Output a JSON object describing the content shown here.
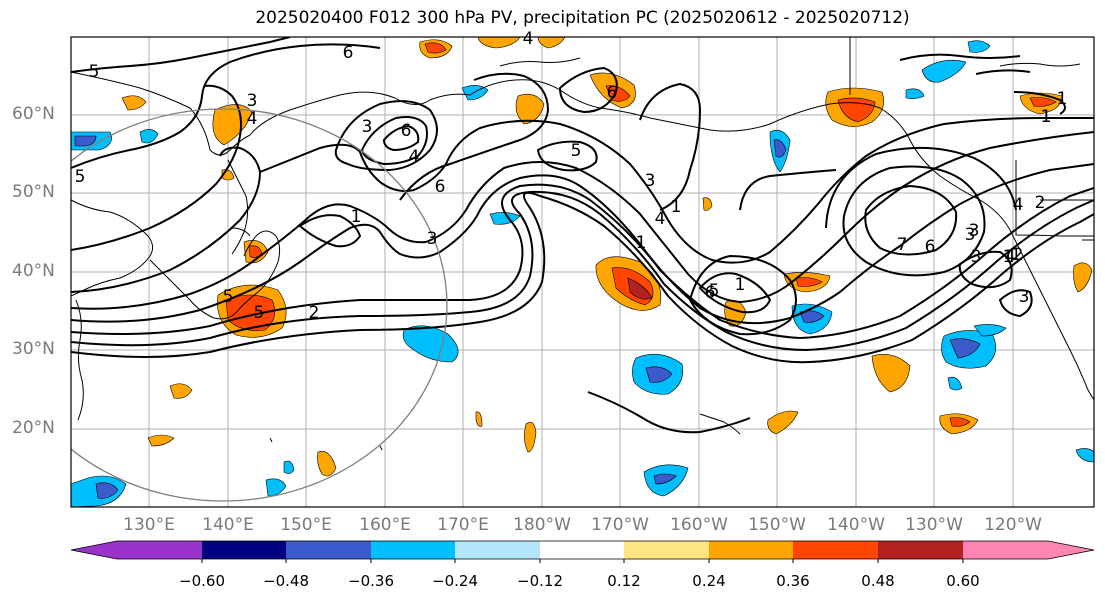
{
  "title": "2025020400 F012 300 hPa PV, precipitation PC (2025020612 - 2025020712)",
  "lat_labels": [
    "60°N",
    "50°N",
    "40°N",
    "30°N",
    "20°N"
  ],
  "lon_labels": [
    "130°E",
    "140°E",
    "150°E",
    "160°E",
    "170°E",
    "180°W",
    "170°W",
    "160°W",
    "150°W",
    "140°W",
    "130°W",
    "120°W"
  ],
  "colorbar": {
    "colors": [
      "#9933cc",
      "#000080",
      "#3b5bcc",
      "#00bfff",
      "#b3e5fc",
      "#ffffff",
      "#ffe680",
      "#ffa500",
      "#ff4500",
      "#b22222",
      "#ff85b3"
    ],
    "tick_labels": [
      "−0.60",
      "−0.48",
      "−0.36",
      "−0.24",
      "−0.12",
      "0.12",
      "0.24",
      "0.36",
      "0.48",
      "0.60"
    ]
  },
  "contour_labels": [
    "6",
    "5",
    "3",
    "3",
    "4",
    "6",
    "6",
    "4",
    "2",
    "5",
    "5",
    "4",
    "5",
    "3",
    "6",
    "1",
    "2",
    "1",
    "3",
    "1",
    "7",
    "6",
    "2",
    "3",
    "1",
    "1",
    "1",
    "6",
    "5",
    "1",
    "3",
    "4",
    "4",
    "5",
    "3",
    "3",
    "4",
    "1",
    "1"
  ]
}
